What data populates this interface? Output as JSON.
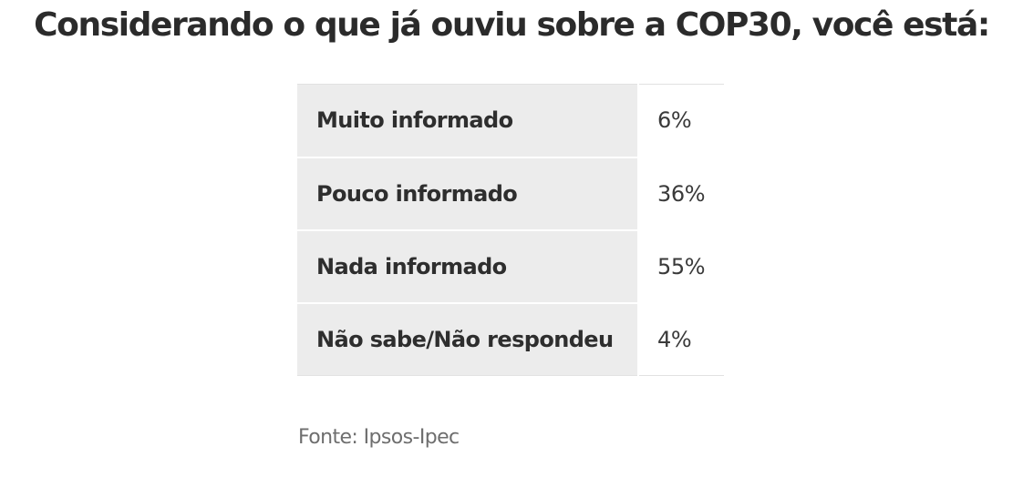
{
  "chart_data": {
    "type": "table",
    "title": "Considerando o que já ouviu sobre a COP30, você está:",
    "rows": [
      {
        "label": "Muito informado",
        "value": "6%"
      },
      {
        "label": "Pouco informado",
        "value": "36%"
      },
      {
        "label": "Nada informado",
        "value": "55%"
      },
      {
        "label": "Não sabe/Não respondeu",
        "value": "4%"
      }
    ],
    "source": "Fonte: Ipsos-Ipec"
  }
}
